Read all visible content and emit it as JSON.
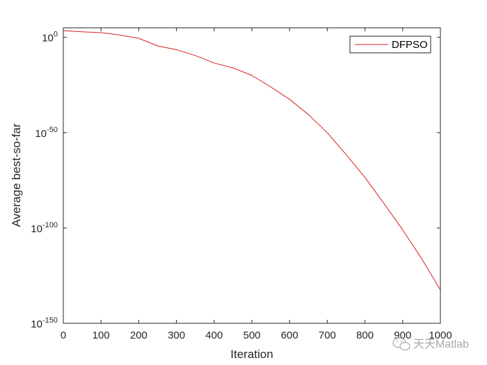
{
  "chart_data": {
    "type": "line",
    "xlabel": "Iteration",
    "ylabel": "Average best-so-far",
    "xlim": [
      0,
      1000
    ],
    "ylim_exponent": [
      -150,
      5
    ],
    "y_scale": "log",
    "grid": false,
    "legend_position": "top-right",
    "x_ticks": [
      0,
      100,
      200,
      300,
      400,
      500,
      600,
      700,
      800,
      900,
      1000
    ],
    "y_ticks": [
      {
        "base": "10",
        "exp": "0",
        "value": 0
      },
      {
        "base": "10",
        "exp": "-50",
        "value": -50
      },
      {
        "base": "10",
        "exp": "-100",
        "value": -100
      },
      {
        "base": "10",
        "exp": "-150",
        "value": -150
      }
    ],
    "series": [
      {
        "name": "DFPSO",
        "color": "#d62020",
        "x": [
          0,
          50,
          100,
          150,
          200,
          250,
          300,
          350,
          400,
          450,
          500,
          550,
          600,
          650,
          700,
          750,
          800,
          850,
          900,
          950,
          1000
        ],
        "log10_y": [
          3.5,
          2.9,
          2.5,
          1.2,
          -0.5,
          -4.5,
          -6.5,
          -9.5,
          -13.5,
          -16.0,
          -20.0,
          -26.0,
          -32.5,
          -40.5,
          -50.0,
          -61.5,
          -73.5,
          -87.0,
          -101.0,
          -116.0,
          -132.5
        ]
      }
    ]
  },
  "watermark": {
    "text": "天天Matlab",
    "icon": "wechat-icon"
  }
}
